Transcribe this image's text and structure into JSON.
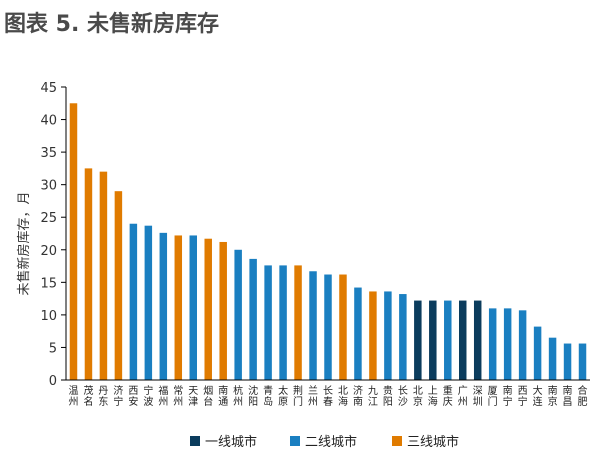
{
  "chart_data": {
    "type": "bar",
    "title": "图表 5. 未售新房库存",
    "ylabel": "未售新房库存，月",
    "ylim": [
      0,
      45
    ],
    "yticks": [
      0,
      5,
      10,
      15,
      20,
      25,
      30,
      35,
      40,
      45
    ],
    "grid": false,
    "legend_position": "bottom",
    "series": [
      {
        "name": "一线城市",
        "color": "#0b3c5d"
      },
      {
        "name": "二线城市",
        "color": "#1a7fc1"
      },
      {
        "name": "三线城市",
        "color": "#e07b00"
      }
    ],
    "categories": [
      "温州",
      "茂名",
      "丹东",
      "济宁",
      "西安",
      "宁波",
      "福州",
      "常州",
      "天津",
      "烟台",
      "南通",
      "杭州",
      "沈阳",
      "青岛",
      "太原",
      "荆门",
      "兰州",
      "长春",
      "北海",
      "济南",
      "九江",
      "贵阳",
      "长沙",
      "北京",
      "上海",
      "重庆",
      "广州",
      "深圳",
      "厦门",
      "南宁",
      "西宁",
      "大连",
      "南京",
      "南昌",
      "合肥"
    ],
    "tiers": [
      2,
      2,
      2,
      2,
      1,
      1,
      1,
      2,
      1,
      2,
      2,
      1,
      1,
      1,
      1,
      2,
      1,
      1,
      2,
      1,
      2,
      1,
      1,
      0,
      0,
      1,
      0,
      0,
      1,
      1,
      1,
      1,
      1,
      1,
      1
    ],
    "values": [
      42.5,
      32.5,
      32,
      29,
      24,
      23.7,
      22.6,
      22.2,
      22.2,
      21.7,
      21.2,
      20,
      18.6,
      17.6,
      17.6,
      17.6,
      16.7,
      16.2,
      16.2,
      14.2,
      13.6,
      13.6,
      13.2,
      12.2,
      12.2,
      12.2,
      12.2,
      12.2,
      11,
      11,
      10.7,
      8.2,
      6.5,
      5.6,
      5.6
    ]
  }
}
